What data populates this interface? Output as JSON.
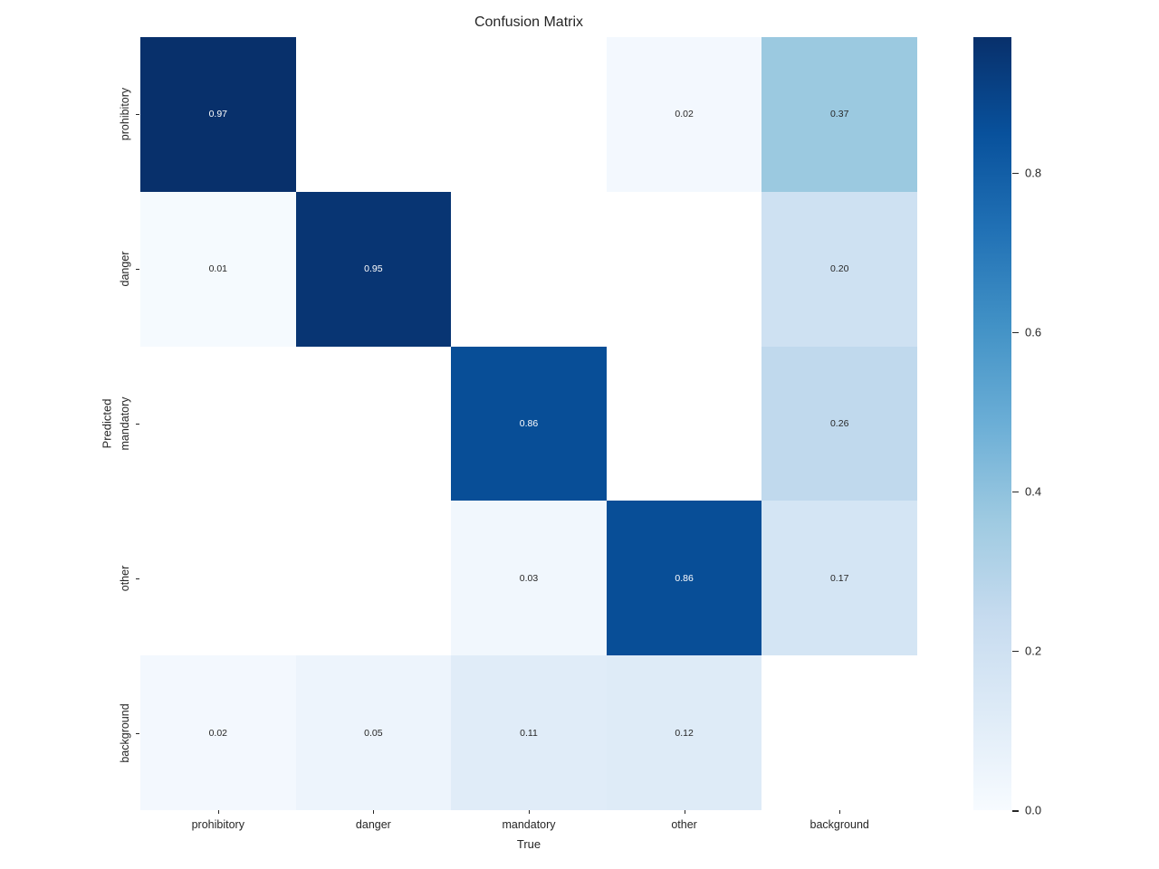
{
  "title": "Confusion Matrix",
  "chart_data": {
    "type": "heatmap",
    "title": "Confusion Matrix",
    "xlabel": "True",
    "ylabel": "Predicted",
    "x_categories": [
      "prohibitory",
      "danger",
      "mandatory",
      "other",
      "background"
    ],
    "y_categories": [
      "prohibitory",
      "danger",
      "mandatory",
      "other",
      "background"
    ],
    "values": [
      [
        0.97,
        null,
        null,
        0.02,
        0.37
      ],
      [
        0.01,
        0.95,
        null,
        null,
        0.2
      ],
      [
        null,
        null,
        0.86,
        null,
        0.26
      ],
      [
        null,
        null,
        0.03,
        0.86,
        0.17
      ],
      [
        0.02,
        0.05,
        0.11,
        0.12,
        null
      ]
    ],
    "cell_labels": [
      [
        "0.97",
        "",
        "",
        "0.02",
        "0.37"
      ],
      [
        "0.01",
        "0.95",
        "",
        "",
        "0.20"
      ],
      [
        "",
        "",
        "0.86",
        "",
        "0.26"
      ],
      [
        "",
        "",
        "0.03",
        "0.86",
        "0.17"
      ],
      [
        "0.02",
        "0.05",
        "0.11",
        "0.12",
        ""
      ]
    ],
    "cell_colors": [
      [
        "#08306b",
        "#ffffff",
        "#ffffff",
        "#f3f8fe",
        "#9bc9e0"
      ],
      [
        "#f5fafe",
        "#083573",
        "#ffffff",
        "#ffffff",
        "#cee1f2"
      ],
      [
        "#ffffff",
        "#ffffff",
        "#084e97",
        "#ffffff",
        "#c0d9ed"
      ],
      [
        "#ffffff",
        "#ffffff",
        "#f1f7fd",
        "#084e97",
        "#d4e5f4"
      ],
      [
        "#f3f8fe",
        "#edf4fc",
        "#e0ecf8",
        "#deebf7",
        "#ffffff"
      ]
    ],
    "cell_text_colors": [
      [
        "#ffffff",
        "#262626",
        "#262626",
        "#262626",
        "#262626"
      ],
      [
        "#262626",
        "#ffffff",
        "#262626",
        "#262626",
        "#262626"
      ],
      [
        "#262626",
        "#262626",
        "#ffffff",
        "#262626",
        "#262626"
      ],
      [
        "#262626",
        "#262626",
        "#262626",
        "#ffffff",
        "#262626"
      ],
      [
        "#262626",
        "#262626",
        "#262626",
        "#262626",
        "#262626"
      ]
    ],
    "grid": false,
    "legend_position": "none",
    "colorbar": {
      "colormap": "Blues",
      "vmin": 0.0,
      "vmax": 0.97,
      "tick_labels": [
        "0.8",
        "0.6",
        "0.4",
        "0.2",
        "0.0"
      ],
      "tick_values": [
        0.8,
        0.6,
        0.4,
        0.2,
        0.0
      ],
      "gradient_top_to_bottom": [
        "#08306b",
        "#08519c",
        "#2171b5",
        "#4292c6",
        "#6baed6",
        "#9ecae1",
        "#c6dbef",
        "#deebf7",
        "#f7fbff"
      ]
    },
    "colors": {
      "background": "#ffffff",
      "text": "#262626",
      "annotation_light": "#ffffff",
      "annotation_dark": "#262626"
    }
  }
}
